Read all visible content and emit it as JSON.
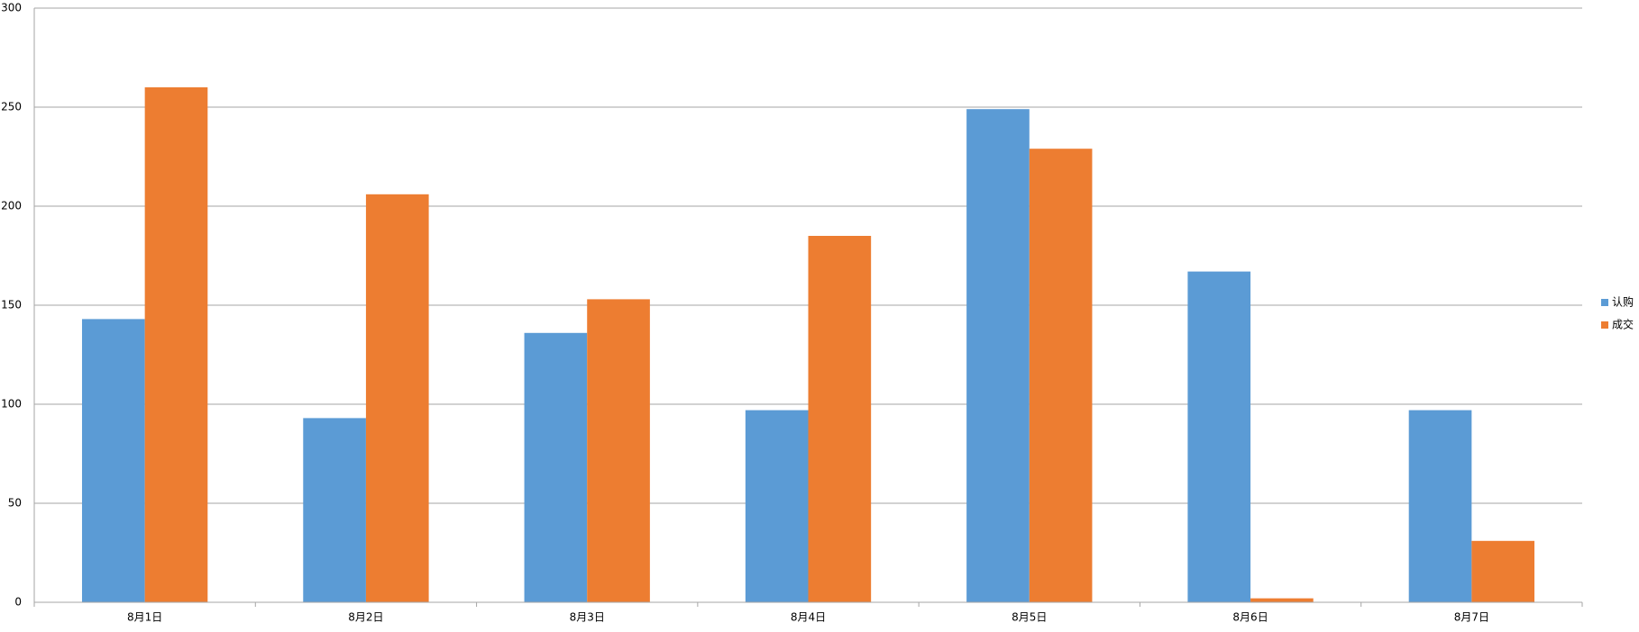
{
  "chart_data": {
    "type": "bar",
    "categories": [
      "8月1日",
      "8月2日",
      "8月3日",
      "8月4日",
      "8月5日",
      "8月6日",
      "8月7日"
    ],
    "series": [
      {
        "name": "认购",
        "color": "#5b9bd5",
        "values": [
          143,
          93,
          136,
          97,
          249,
          167,
          97
        ]
      },
      {
        "name": "成交",
        "color": "#ed7d31",
        "values": [
          260,
          206,
          153,
          185,
          229,
          2,
          31
        ]
      }
    ],
    "ylim": [
      0,
      300
    ],
    "yticks": [
      0,
      50,
      100,
      150,
      200,
      250,
      300
    ],
    "grid": true,
    "legend": "right"
  }
}
